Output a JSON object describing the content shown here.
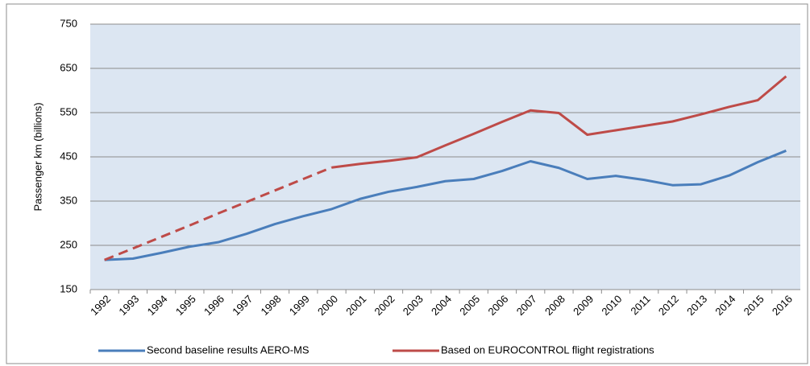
{
  "chart_data": {
    "type": "line",
    "y_label": "Passenger km (billions)",
    "categories": [
      "1992",
      "1993",
      "1994",
      "1995",
      "1996",
      "1997",
      "1998",
      "1999",
      "2000",
      "2001",
      "2002",
      "2003",
      "2004",
      "2005",
      "2006",
      "2007",
      "2008",
      "2009",
      "2010",
      "2011",
      "2012",
      "2013",
      "2014",
      "2015",
      "2016"
    ],
    "series": [
      {
        "name": "Second baseline results AERO-MS",
        "color": "#4a7ebb",
        "values": [
          217,
          220,
          233,
          247,
          257,
          276,
          298,
          316,
          332,
          355,
          371,
          382,
          395,
          400,
          418,
          440,
          425,
          400,
          407,
          398,
          386,
          388,
          408,
          438,
          464
        ]
      },
      {
        "name": "Based on EUROCONTROL flight registrations",
        "color": "#be4b48",
        "dashed_until": "2000",
        "values": [
          217,
          243,
          269,
          295,
          322,
          348,
          374,
          400,
          426,
          434,
          441,
          449,
          476,
          502,
          529,
          555,
          549,
          500,
          510,
          520,
          530,
          546,
          563,
          578,
          632
        ]
      }
    ],
    "ylim": [
      150,
      750
    ],
    "yticks": [
      150,
      250,
      350,
      450,
      550,
      650,
      750
    ],
    "grid": true,
    "legend": "bottom"
  }
}
